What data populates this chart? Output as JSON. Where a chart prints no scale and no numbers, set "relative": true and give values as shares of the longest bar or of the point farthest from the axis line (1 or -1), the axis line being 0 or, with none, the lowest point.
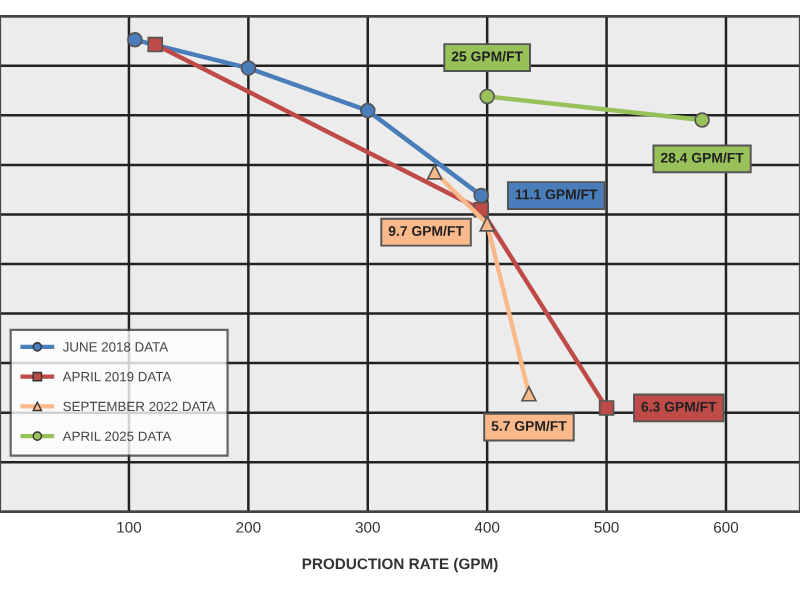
{
  "chart_data": {
    "type": "line",
    "xlabel": "PRODUCTION RATE (GPM)",
    "relative": true,
    "xlim": [
      -8,
      662
    ],
    "xticks": [
      100,
      200,
      300,
      400,
      500,
      600
    ],
    "tick_labels": "x",
    "grid": true,
    "legend": "bottom left",
    "series": [
      {
        "name": "JUNE 2018 DATA",
        "color": "#4a7ebb",
        "marker": "circle",
        "x": [
          105,
          200,
          300,
          395
        ],
        "values": [
          1,
          0.94,
          0.85,
          0.67
        ]
      },
      {
        "name": "APRIL 2019 DATA",
        "color": "#be4b48",
        "marker": "square",
        "x": [
          122,
          395,
          500
        ],
        "values": [
          0.99,
          0.64,
          0.22
        ]
      },
      {
        "name": "SEPTEMBER 2022 DATA",
        "color": "#f9b98a",
        "marker": "triangle",
        "x": [
          356,
          400,
          435
        ],
        "values": [
          0.72,
          0.61,
          0.25
        ]
      },
      {
        "name": "APRIL 2025 DATA",
        "color": "#98c15a",
        "marker": "circle",
        "x": [
          400,
          580
        ],
        "values": [
          0.88,
          0.83
        ]
      }
    ],
    "annotations": [
      {
        "text": "25 GPM/FT",
        "x": 400,
        "y": 0.88
      },
      {
        "text": "28.4 GPM/FT",
        "x": 580,
        "y": 0.83
      },
      {
        "text": "11.1 GPM/FT",
        "x": 395,
        "y": 0.67
      },
      {
        "text": "9.7 GPM/FT",
        "x": 400,
        "y": 0.61
      },
      {
        "text": "5.7 GPM/FT",
        "x": 435,
        "y": 0.25
      },
      {
        "text": "6.3 GPM/FT",
        "x": 500,
        "y": 0.22
      }
    ]
  }
}
